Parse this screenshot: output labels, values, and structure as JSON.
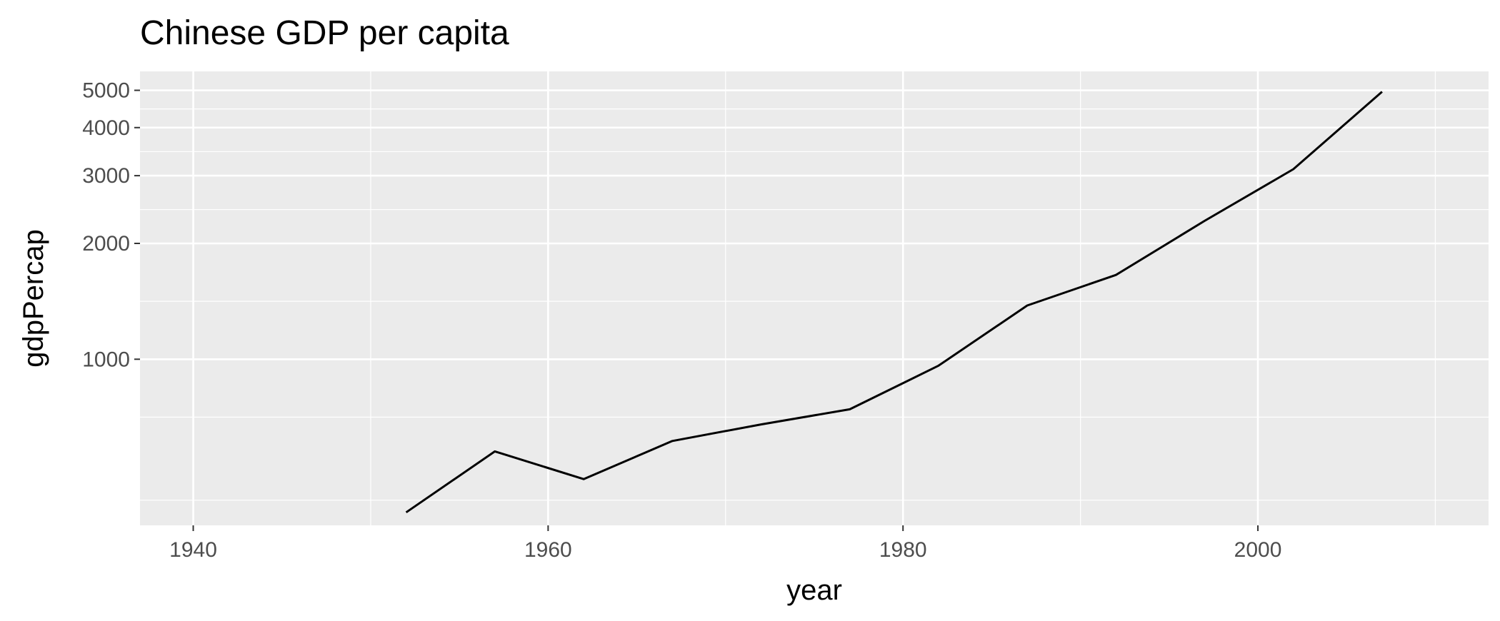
{
  "chart_data": {
    "type": "line",
    "title": "Chinese GDP per capita",
    "xlabel": "year",
    "ylabel": "gdpPercap",
    "x_scale": "linear",
    "y_scale": "log10",
    "xlim": [
      1937,
      2013
    ],
    "ylim": [
      370,
      5600
    ],
    "x_ticks": [
      1940,
      1960,
      1980,
      2000
    ],
    "x_tick_labels": [
      "1940",
      "1960",
      "1980",
      "2000"
    ],
    "y_ticks": [
      1000,
      2000,
      3000,
      4000,
      5000
    ],
    "y_tick_labels": [
      "1000",
      "2000",
      "3000",
      "4000",
      "5000"
    ],
    "grid": true,
    "legend": "none",
    "line_color": "#000000",
    "panel_background": "#ebebeb",
    "grid_color": "#ffffff",
    "series": [
      {
        "x": [
          1952,
          1957,
          1962,
          1967,
          1972,
          1977,
          1982,
          1987,
          1992,
          1997,
          2002,
          2007
        ],
        "values": [
          400,
          576,
          488,
          613,
          677,
          741,
          962,
          1379,
          1656,
          2289,
          3119,
          4959
        ]
      }
    ]
  }
}
